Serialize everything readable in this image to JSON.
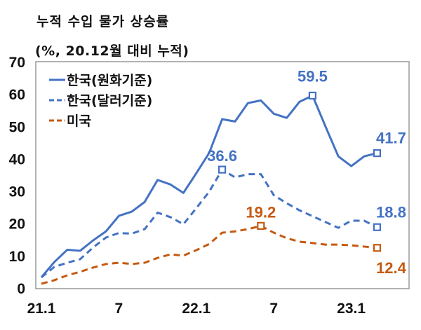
{
  "chart_data": {
    "type": "line",
    "title": "누적 수입 물가 상승률",
    "subtitle": "(%, 20.12월 대비 누적)",
    "ylim": [
      0,
      70
    ],
    "yticks": [
      "0",
      "10",
      "20",
      "30",
      "40",
      "50",
      "60",
      "70"
    ],
    "xtick_labels": [
      {
        "month_index": 0,
        "label": "21.1"
      },
      {
        "month_index": 6,
        "label": "7"
      },
      {
        "month_index": 12,
        "label": "22.1"
      },
      {
        "month_index": 18,
        "label": "7"
      },
      {
        "month_index": 24,
        "label": "23.1"
      }
    ],
    "grid": false,
    "legend_position": "top-left",
    "x": [
      "21.1",
      "21.2",
      "21.3",
      "21.4",
      "21.5",
      "21.6",
      "21.7",
      "21.8",
      "21.9",
      "21.10",
      "21.11",
      "21.12",
      "22.1",
      "22.2",
      "22.3",
      "22.4",
      "22.5",
      "22.6",
      "22.7",
      "22.8",
      "22.9",
      "22.10",
      "22.11",
      "22.12",
      "23.1",
      "23.2",
      "23.3"
    ],
    "series": [
      {
        "name": "한국(원화기준)",
        "color": "#4472C4",
        "style": "solid",
        "values": [
          3.3,
          8,
          11.8,
          11.5,
          14.7,
          17.5,
          22.3,
          23.6,
          26.6,
          33.4,
          32,
          29.4,
          35.5,
          41.8,
          52.2,
          51.5,
          57.2,
          58,
          53.9,
          52.6,
          57.6,
          59.5,
          50,
          40.7,
          37.7,
          40.7,
          41.7
        ],
        "labels": [
          {
            "index": 21,
            "text": "59.5"
          },
          {
            "index": 26,
            "text": "41.7"
          }
        ]
      },
      {
        "name": "한국(달러기준)",
        "color": "#4472C4",
        "style": "dashed",
        "values": [
          3.3,
          6.5,
          7.8,
          8.9,
          12.5,
          15.6,
          17,
          16.8,
          18.2,
          23.3,
          21.9,
          19.7,
          24.7,
          29.8,
          36.6,
          34.2,
          35.2,
          35.2,
          28.7,
          26.2,
          24,
          22.2,
          20.4,
          18.6,
          20.8,
          20.8,
          18.8
        ],
        "labels": [
          {
            "index": 14,
            "text": "36.6"
          },
          {
            "index": 26,
            "text": "18.8"
          }
        ]
      },
      {
        "name": "미국",
        "color": "#C55A11",
        "style": "dashed",
        "values": [
          1.3,
          2.4,
          3.9,
          5,
          6.3,
          7.4,
          7.8,
          7.4,
          7.8,
          9.3,
          10.4,
          10,
          11.7,
          13.6,
          17.1,
          17.5,
          18.2,
          19.2,
          17.1,
          15.4,
          14.3,
          13.9,
          13.4,
          13.4,
          13.2,
          12.8,
          12.4
        ],
        "labels": [
          {
            "index": 17,
            "text": "19.2"
          },
          {
            "index": 26,
            "text": "12.4"
          }
        ]
      }
    ]
  }
}
